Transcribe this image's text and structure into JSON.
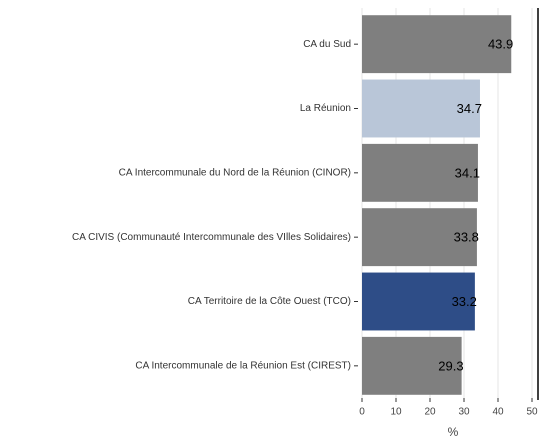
{
  "chart_data": {
    "type": "barh",
    "categories": [
      "CA du Sud",
      "La Réunion",
      "CA Intercommunale du Nord de la Réunion (CINOR)",
      "CA CIVIS (Communauté Intercommunale des VIlles Solidaires)",
      "CA Territoire de la Côte Ouest (TCO)",
      "CA Intercommunale de la Réunion Est (CIREST)"
    ],
    "values": [
      43.9,
      34.7,
      34.1,
      33.8,
      33.2,
      29.3
    ],
    "colors": [
      "#7f7f7f",
      "#b9c6d8",
      "#7f7f7f",
      "#7f7f7f",
      "#2e4d87",
      "#7f7f7f"
    ],
    "xlabel": "%",
    "xlim": [
      0,
      50
    ],
    "xticks": [
      0,
      10,
      20,
      30,
      40,
      50
    ],
    "grid": true
  }
}
